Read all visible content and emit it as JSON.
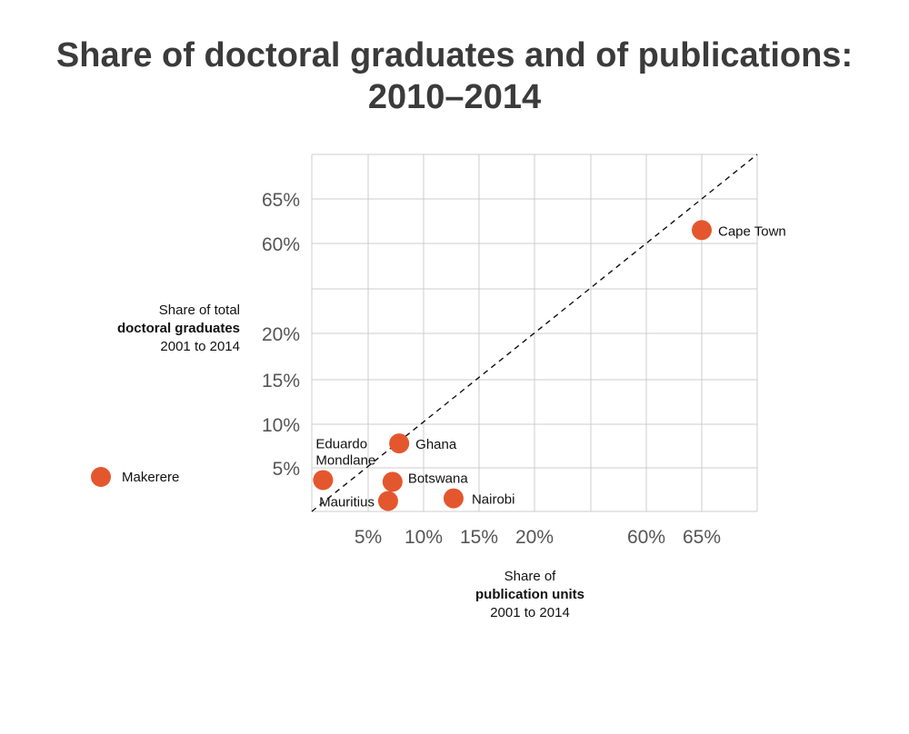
{
  "title_line1": "Share of doctoral graduates and of publications:",
  "title_line2": "2010–2014",
  "ylabel": {
    "line1": "Share of total",
    "line2": "doctoral graduates",
    "line3": "2001 to 2014"
  },
  "xlabel": {
    "line1": "Share of",
    "line2": "publication units",
    "line3": "2001 to 2014"
  },
  "colors": {
    "point": "#e4572e",
    "grid": "#cccccc",
    "diagonal": "#111111"
  },
  "chart_data": {
    "type": "scatter",
    "x_ticks": [
      "5%",
      "10%",
      "15%",
      "20%",
      "60%",
      "65%"
    ],
    "y_ticks": [
      "5%",
      "10%",
      "15%",
      "20%",
      "60%",
      "65%"
    ],
    "axis_break": "broken scale between 20% and 60% on both axes",
    "reference_line": "y = x",
    "points": [
      {
        "name": "Cape Town",
        "x": 65,
        "y": 61.5
      },
      {
        "name": "Ghana",
        "x": 7.8,
        "y": 7.8
      },
      {
        "name": "Eduardo Mondlane",
        "x": 1.0,
        "y": 3.6
      },
      {
        "name": "Botswana",
        "x": 7.2,
        "y": 3.4
      },
      {
        "name": "Mauritius",
        "x": 6.8,
        "y": 1.2
      },
      {
        "name": "Nairobi",
        "x": 12.7,
        "y": 1.5
      }
    ],
    "legend": [
      {
        "name": "Makerere"
      }
    ]
  }
}
